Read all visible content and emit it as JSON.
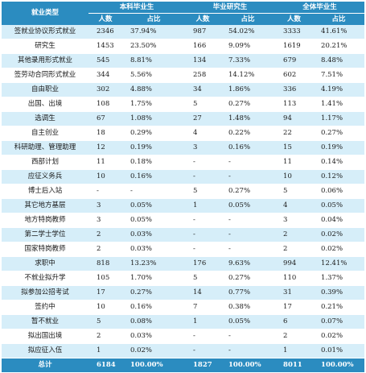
{
  "header": {
    "row_label": "就业类型",
    "groups": [
      "本科毕业生",
      "毕业研究生",
      "全体毕业生"
    ],
    "sub": [
      "人数",
      "占比"
    ]
  },
  "rows": [
    {
      "label": "签就业协议形式就业",
      "v": [
        "2346",
        "37.94%",
        "987",
        "54.02%",
        "3333",
        "41.61%"
      ]
    },
    {
      "label": "研究生",
      "v": [
        "1453",
        "23.50%",
        "166",
        "9.09%",
        "1619",
        "20.21%"
      ]
    },
    {
      "label": "其他录用形式就业",
      "v": [
        "545",
        "8.81%",
        "134",
        "7.33%",
        "679",
        "8.48%"
      ]
    },
    {
      "label": "签劳动合同形式就业",
      "v": [
        "344",
        "5.56%",
        "258",
        "14.12%",
        "602",
        "7.51%"
      ]
    },
    {
      "label": "自由职业",
      "v": [
        "302",
        "4.88%",
        "34",
        "1.86%",
        "336",
        "4.19%"
      ]
    },
    {
      "label": "出国、出境",
      "v": [
        "108",
        "1.75%",
        "5",
        "0.27%",
        "113",
        "1.41%"
      ]
    },
    {
      "label": "选调生",
      "v": [
        "67",
        "1.08%",
        "27",
        "1.48%",
        "94",
        "1.17%"
      ]
    },
    {
      "label": "自主创业",
      "v": [
        "18",
        "0.29%",
        "4",
        "0.22%",
        "22",
        "0.27%"
      ]
    },
    {
      "label": "科研助理、管理助理",
      "v": [
        "12",
        "0.19%",
        "3",
        "0.16%",
        "15",
        "0.19%"
      ]
    },
    {
      "label": "西部计划",
      "v": [
        "11",
        "0.18%",
        "-",
        "-",
        "11",
        "0.14%"
      ]
    },
    {
      "label": "应征义务兵",
      "v": [
        "10",
        "0.16%",
        "-",
        "-",
        "10",
        "0.12%"
      ]
    },
    {
      "label": "博士后入站",
      "v": [
        "-",
        "-",
        "5",
        "0.27%",
        "5",
        "0.06%"
      ]
    },
    {
      "label": "其它地方基层",
      "v": [
        "3",
        "0.05%",
        "1",
        "0.05%",
        "4",
        "0.05%"
      ]
    },
    {
      "label": "地方特岗教师",
      "v": [
        "3",
        "0.05%",
        "-",
        "-",
        "3",
        "0.04%"
      ]
    },
    {
      "label": "第二学士学位",
      "v": [
        "2",
        "0.03%",
        "-",
        "-",
        "2",
        "0.02%"
      ]
    },
    {
      "label": "国家特岗教师",
      "v": [
        "2",
        "0.03%",
        "-",
        "-",
        "2",
        "0.02%"
      ]
    },
    {
      "label": "求职中",
      "v": [
        "818",
        "13.23%",
        "176",
        "9.63%",
        "994",
        "12.41%"
      ]
    },
    {
      "label": "不就业拟升学",
      "v": [
        "105",
        "1.70%",
        "5",
        "0.27%",
        "110",
        "1.37%"
      ]
    },
    {
      "label": "拟参加公招考试",
      "v": [
        "17",
        "0.27%",
        "14",
        "0.77%",
        "31",
        "0.39%"
      ]
    },
    {
      "label": "签约中",
      "v": [
        "10",
        "0.16%",
        "7",
        "0.38%",
        "17",
        "0.21%"
      ]
    },
    {
      "label": "暂不就业",
      "v": [
        "5",
        "0.08%",
        "1",
        "0.05%",
        "6",
        "0.07%"
      ]
    },
    {
      "label": "拟出国出境",
      "v": [
        "2",
        "0.03%",
        "-",
        "-",
        "2",
        "0.02%"
      ]
    },
    {
      "label": "拟应征入伍",
      "v": [
        "1",
        "0.02%",
        "-",
        "-",
        "1",
        "0.01%"
      ]
    }
  ],
  "total": {
    "label": "总计",
    "v": [
      "6184",
      "100.00%",
      "1827",
      "100.00%",
      "8011",
      "100.00%"
    ]
  }
}
